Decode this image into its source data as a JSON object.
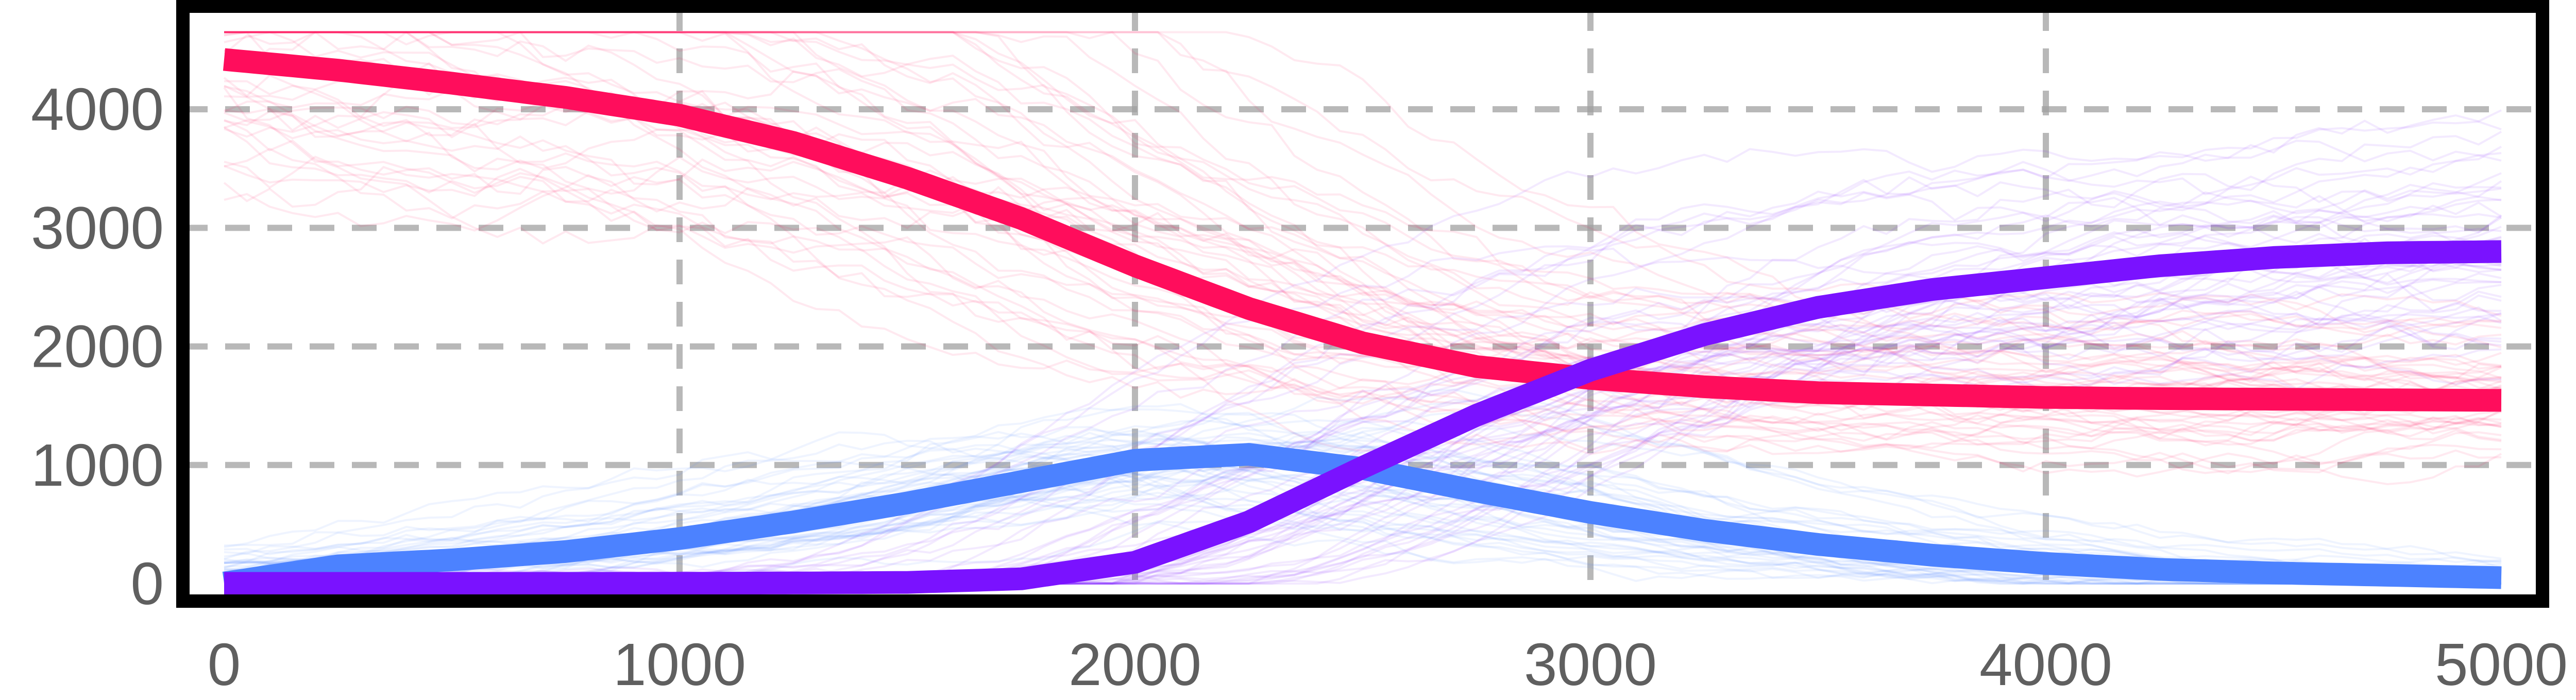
{
  "chart_data": {
    "type": "line",
    "title": "",
    "xlabel": "",
    "ylabel": "",
    "xlim": [
      0,
      5000
    ],
    "ylim": [
      0,
      4800
    ],
    "x_ticks": [
      "0",
      "1000",
      "2000",
      "3000",
      "4000",
      "5000"
    ],
    "y_ticks": [
      "0",
      "1000",
      "2000",
      "3000",
      "4000"
    ],
    "grid": true,
    "legend": "none",
    "x": [
      0,
      250,
      500,
      750,
      1000,
      1250,
      1500,
      1750,
      2000,
      2250,
      2500,
      2750,
      3000,
      3250,
      3500,
      3750,
      4000,
      4250,
      4500,
      4750,
      5000
    ],
    "series": [
      {
        "color": "#ff0d5c",
        "values": [
          4420,
          4330,
          4220,
          4100,
          3950,
          3720,
          3420,
          3080,
          2680,
          2320,
          2030,
          1830,
          1730,
          1660,
          1610,
          1590,
          1570,
          1560,
          1555,
          1550,
          1545
        ]
      },
      {
        "color": "#4c82ff",
        "values": [
          5,
          150,
          200,
          270,
          380,
          520,
          680,
          860,
          1040,
          1090,
          970,
          780,
          600,
          450,
          330,
          240,
          170,
          120,
          90,
          70,
          50
        ]
      },
      {
        "color": "#7a12ff",
        "values": [
          2,
          2,
          2,
          2,
          3,
          5,
          10,
          40,
          180,
          520,
          980,
          1420,
          1800,
          2100,
          2330,
          2480,
          2580,
          2680,
          2750,
          2790,
          2800
        ]
      }
    ]
  }
}
